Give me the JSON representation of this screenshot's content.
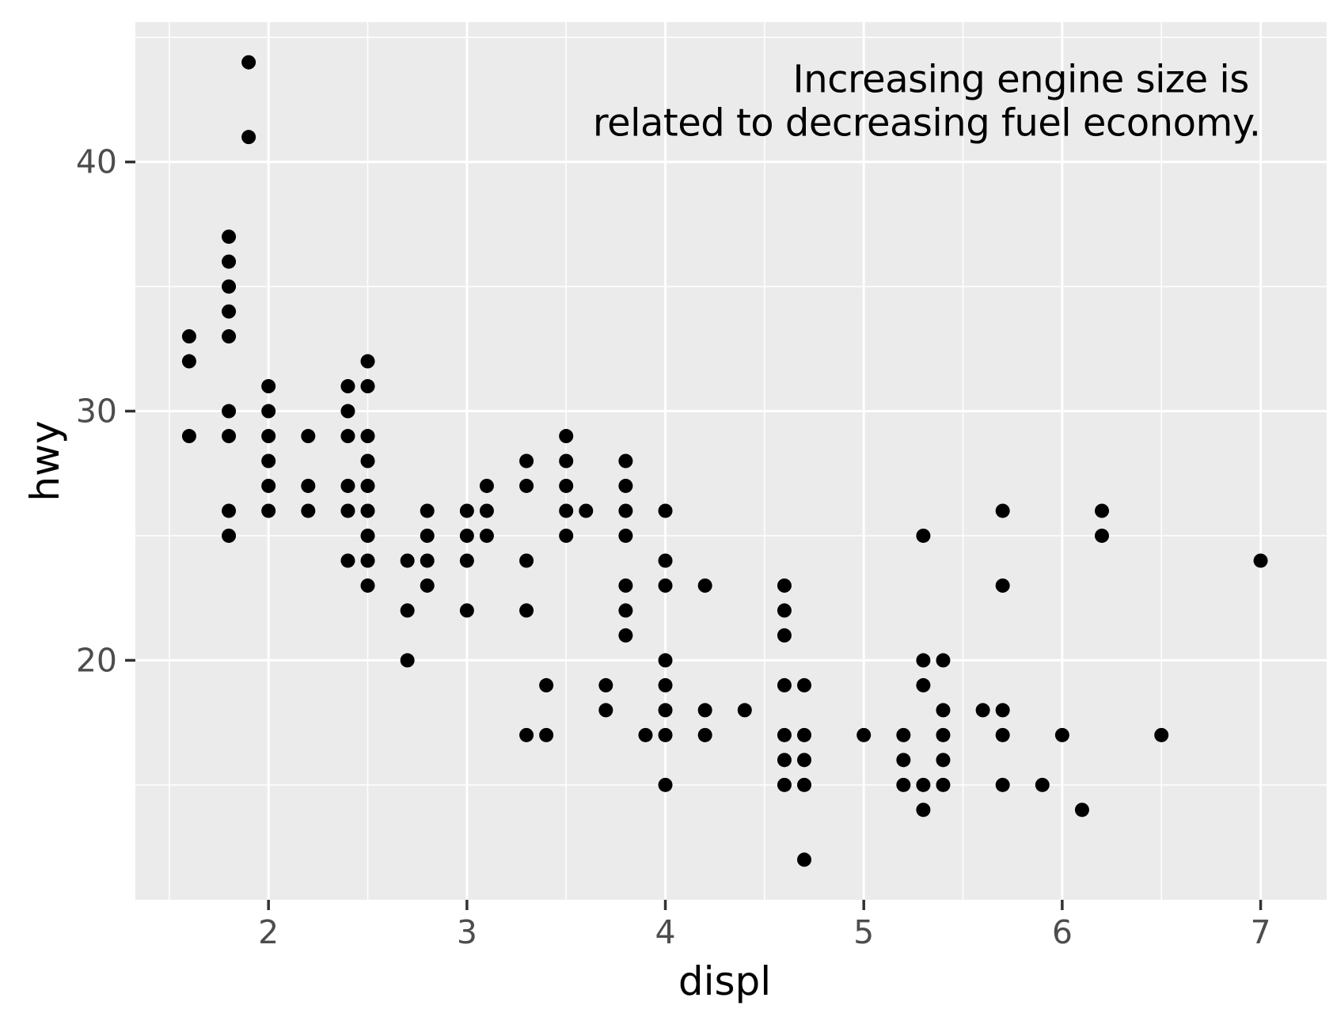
{
  "chart_data": {
    "type": "scatter",
    "title": "",
    "xlabel": "displ",
    "ylabel": "hwy",
    "xlim": [
      1.329,
      7.333
    ],
    "ylim": [
      10.39,
      45.61
    ],
    "x_major_ticks": [
      2,
      3,
      4,
      5,
      6,
      7
    ],
    "y_major_ticks": [
      20,
      30,
      40
    ],
    "x_minor_ticks": [
      1.5,
      2.5,
      3.5,
      4.5,
      5.5,
      6.5
    ],
    "y_minor_ticks": [
      15,
      25,
      35,
      45
    ],
    "grid": true,
    "legend_position": "none",
    "annotation": {
      "lines": [
        "Increasing engine size is ",
        "related to decreasing fuel economy."
      ],
      "anchor_x": 7.0,
      "anchor_y": 44,
      "align": "top-right"
    },
    "colors": {
      "figure_background": "#FFFFFF",
      "panel_background": "#EBEBEB",
      "grid_line": "#FFFFFF",
      "point": "#000000",
      "tick_mark": "#333333",
      "tick_label": "#4D4D4D",
      "axis_title": "#000000",
      "annotation_text": "#000000"
    },
    "points": [
      [
        1.6,
        29
      ],
      [
        1.6,
        32
      ],
      [
        1.6,
        33
      ],
      [
        1.8,
        25
      ],
      [
        1.8,
        26
      ],
      [
        1.8,
        29
      ],
      [
        1.8,
        30
      ],
      [
        1.8,
        33
      ],
      [
        1.8,
        34
      ],
      [
        1.8,
        35
      ],
      [
        1.8,
        36
      ],
      [
        1.8,
        37
      ],
      [
        1.9,
        41
      ],
      [
        1.9,
        44
      ],
      [
        2.0,
        26
      ],
      [
        2.0,
        27
      ],
      [
        2.0,
        28
      ],
      [
        2.0,
        29
      ],
      [
        2.0,
        30
      ],
      [
        2.0,
        31
      ],
      [
        2.2,
        26
      ],
      [
        2.2,
        27
      ],
      [
        2.2,
        29
      ],
      [
        2.4,
        24
      ],
      [
        2.4,
        26
      ],
      [
        2.4,
        27
      ],
      [
        2.4,
        29
      ],
      [
        2.4,
        30
      ],
      [
        2.4,
        31
      ],
      [
        2.5,
        23
      ],
      [
        2.5,
        24
      ],
      [
        2.5,
        25
      ],
      [
        2.5,
        26
      ],
      [
        2.5,
        27
      ],
      [
        2.5,
        28
      ],
      [
        2.5,
        29
      ],
      [
        2.5,
        31
      ],
      [
        2.5,
        32
      ],
      [
        2.7,
        20
      ],
      [
        2.7,
        22
      ],
      [
        2.7,
        24
      ],
      [
        2.8,
        23
      ],
      [
        2.8,
        24
      ],
      [
        2.8,
        25
      ],
      [
        2.8,
        26
      ],
      [
        3.0,
        22
      ],
      [
        3.0,
        24
      ],
      [
        3.0,
        25
      ],
      [
        3.0,
        26
      ],
      [
        3.1,
        25
      ],
      [
        3.1,
        26
      ],
      [
        3.1,
        27
      ],
      [
        3.3,
        17
      ],
      [
        3.3,
        22
      ],
      [
        3.3,
        24
      ],
      [
        3.3,
        27
      ],
      [
        3.3,
        28
      ],
      [
        3.4,
        17
      ],
      [
        3.4,
        19
      ],
      [
        3.5,
        25
      ],
      [
        3.5,
        26
      ],
      [
        3.5,
        27
      ],
      [
        3.5,
        28
      ],
      [
        3.5,
        29
      ],
      [
        3.6,
        26
      ],
      [
        3.7,
        18
      ],
      [
        3.7,
        19
      ],
      [
        3.8,
        21
      ],
      [
        3.8,
        22
      ],
      [
        3.8,
        23
      ],
      [
        3.8,
        25
      ],
      [
        3.8,
        26
      ],
      [
        3.8,
        27
      ],
      [
        3.8,
        28
      ],
      [
        3.9,
        17
      ],
      [
        4.0,
        15
      ],
      [
        4.0,
        17
      ],
      [
        4.0,
        18
      ],
      [
        4.0,
        19
      ],
      [
        4.0,
        20
      ],
      [
        4.0,
        23
      ],
      [
        4.0,
        24
      ],
      [
        4.0,
        26
      ],
      [
        4.2,
        17
      ],
      [
        4.2,
        18
      ],
      [
        4.2,
        23
      ],
      [
        4.4,
        18
      ],
      [
        4.6,
        15
      ],
      [
        4.6,
        16
      ],
      [
        4.6,
        17
      ],
      [
        4.6,
        19
      ],
      [
        4.6,
        21
      ],
      [
        4.6,
        22
      ],
      [
        4.6,
        23
      ],
      [
        4.7,
        12
      ],
      [
        4.7,
        15
      ],
      [
        4.7,
        16
      ],
      [
        4.7,
        17
      ],
      [
        4.7,
        19
      ],
      [
        5.0,
        17
      ],
      [
        5.2,
        15
      ],
      [
        5.2,
        16
      ],
      [
        5.2,
        17
      ],
      [
        5.3,
        14
      ],
      [
        5.3,
        15
      ],
      [
        5.3,
        19
      ],
      [
        5.3,
        20
      ],
      [
        5.3,
        25
      ],
      [
        5.4,
        15
      ],
      [
        5.4,
        16
      ],
      [
        5.4,
        17
      ],
      [
        5.4,
        18
      ],
      [
        5.4,
        20
      ],
      [
        5.6,
        18
      ],
      [
        5.7,
        15
      ],
      [
        5.7,
        17
      ],
      [
        5.7,
        18
      ],
      [
        5.7,
        23
      ],
      [
        5.7,
        26
      ],
      [
        5.9,
        15
      ],
      [
        6.0,
        17
      ],
      [
        6.1,
        14
      ],
      [
        6.2,
        25
      ],
      [
        6.2,
        26
      ],
      [
        6.5,
        17
      ],
      [
        7.0,
        24
      ]
    ]
  }
}
